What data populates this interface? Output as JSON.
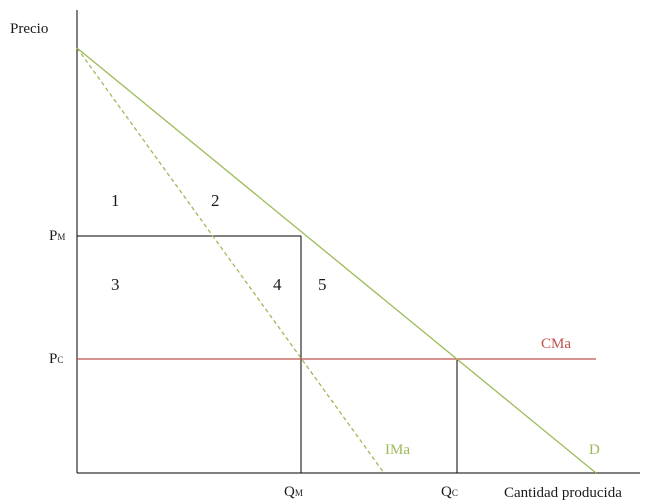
{
  "axes": {
    "y_label": "Precio",
    "x_label": "Cantidad producida"
  },
  "price_labels": {
    "monopoly": {
      "main": "P",
      "sub": "M"
    },
    "competitive": {
      "main": "P",
      "sub": "C"
    }
  },
  "quantity_labels": {
    "monopoly": {
      "main": "Q",
      "sub": "M"
    },
    "competitive": {
      "main": "Q",
      "sub": "C"
    }
  },
  "curves": {
    "demand": {
      "label": "D",
      "color": "#9bbb59"
    },
    "marginal_revenue": {
      "label": "IMa",
      "color": "#9bbb59"
    },
    "marginal_cost": {
      "label": "CMa",
      "color": "#c0504d"
    }
  },
  "regions": [
    "1",
    "2",
    "3",
    "4",
    "5"
  ],
  "colors": {
    "axis": "#000000",
    "guide": "#000000",
    "text": "#1a1a1a"
  }
}
